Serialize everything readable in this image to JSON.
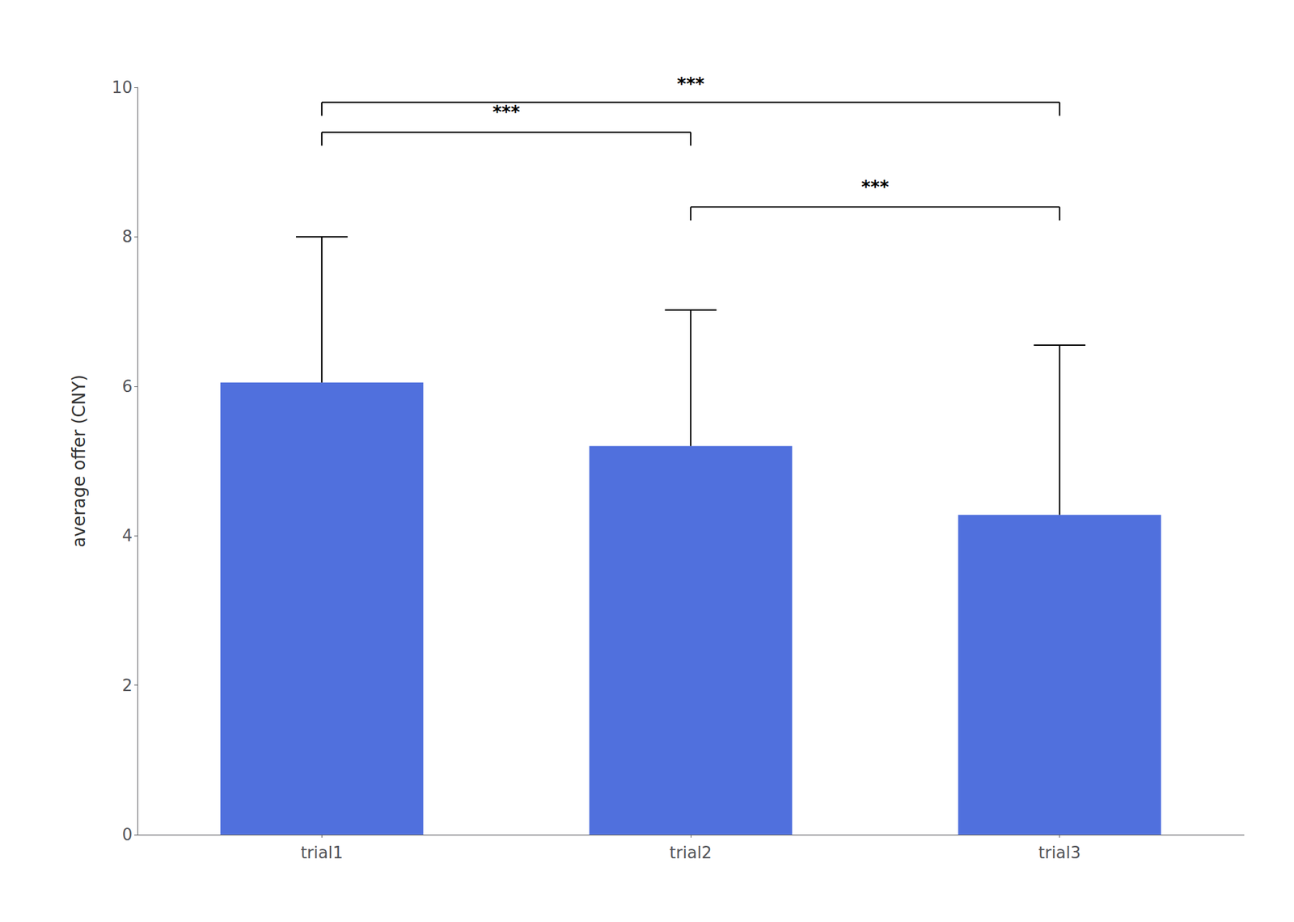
{
  "chart_data": {
    "type": "bar",
    "categories": [
      "trial1",
      "trial2",
      "trial3"
    ],
    "values": [
      6.05,
      5.2,
      4.28
    ],
    "errors_up": [
      1.95,
      1.82,
      2.27
    ],
    "ylabel": "average offer (CNY)",
    "ylim": [
      0,
      10
    ],
    "yticks": [
      0,
      2,
      4,
      6,
      8,
      10
    ],
    "grid": false,
    "significance_brackets": [
      {
        "x1": "trial1",
        "x2": "trial2",
        "y_top": 9.4,
        "y_drop": 0.18,
        "label": "***",
        "label_y": 9.55
      },
      {
        "x1": "trial1",
        "x2": "trial3",
        "y_top": 9.8,
        "y_drop": 0.18,
        "label": "***",
        "label_y": 9.93
      },
      {
        "x1": "trial2",
        "x2": "trial3",
        "y_top": 8.4,
        "y_drop": 0.18,
        "label": "***",
        "label_y": 8.55
      }
    ]
  }
}
